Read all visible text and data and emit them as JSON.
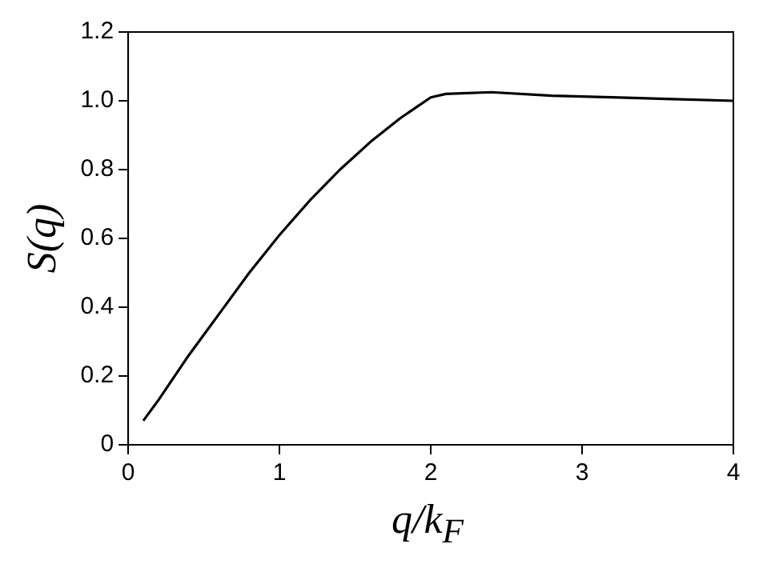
{
  "chart_data": {
    "type": "line",
    "xlabel": "q/k$_{F}$",
    "ylabel": "S(q)",
    "x": [
      0.1,
      0.2,
      0.4,
      0.6,
      0.8,
      1.0,
      1.2,
      1.4,
      1.6,
      1.8,
      1.9,
      2.0,
      2.1,
      2.4,
      2.8,
      3.2,
      3.6,
      4.0
    ],
    "series": [
      {
        "color": "#000000",
        "values": [
          0.07,
          0.13,
          0.26,
          0.38,
          0.5,
          0.61,
          0.71,
          0.8,
          0.88,
          0.95,
          0.98,
          1.01,
          1.02,
          1.025,
          1.015,
          1.01,
          1.005,
          1.0
        ]
      }
    ],
    "xlim": [
      0,
      4
    ],
    "xticks": [
      0,
      1,
      2,
      3,
      4
    ],
    "ylim": [
      0,
      1.2
    ],
    "yticks": [
      0,
      0.2,
      0.4,
      0.6,
      0.8,
      {
        "value": 1,
        "label": "1.0"
      },
      1.2
    ],
    "grid": false,
    "legend": false,
    "marker": "none",
    "line_style": "solid"
  }
}
